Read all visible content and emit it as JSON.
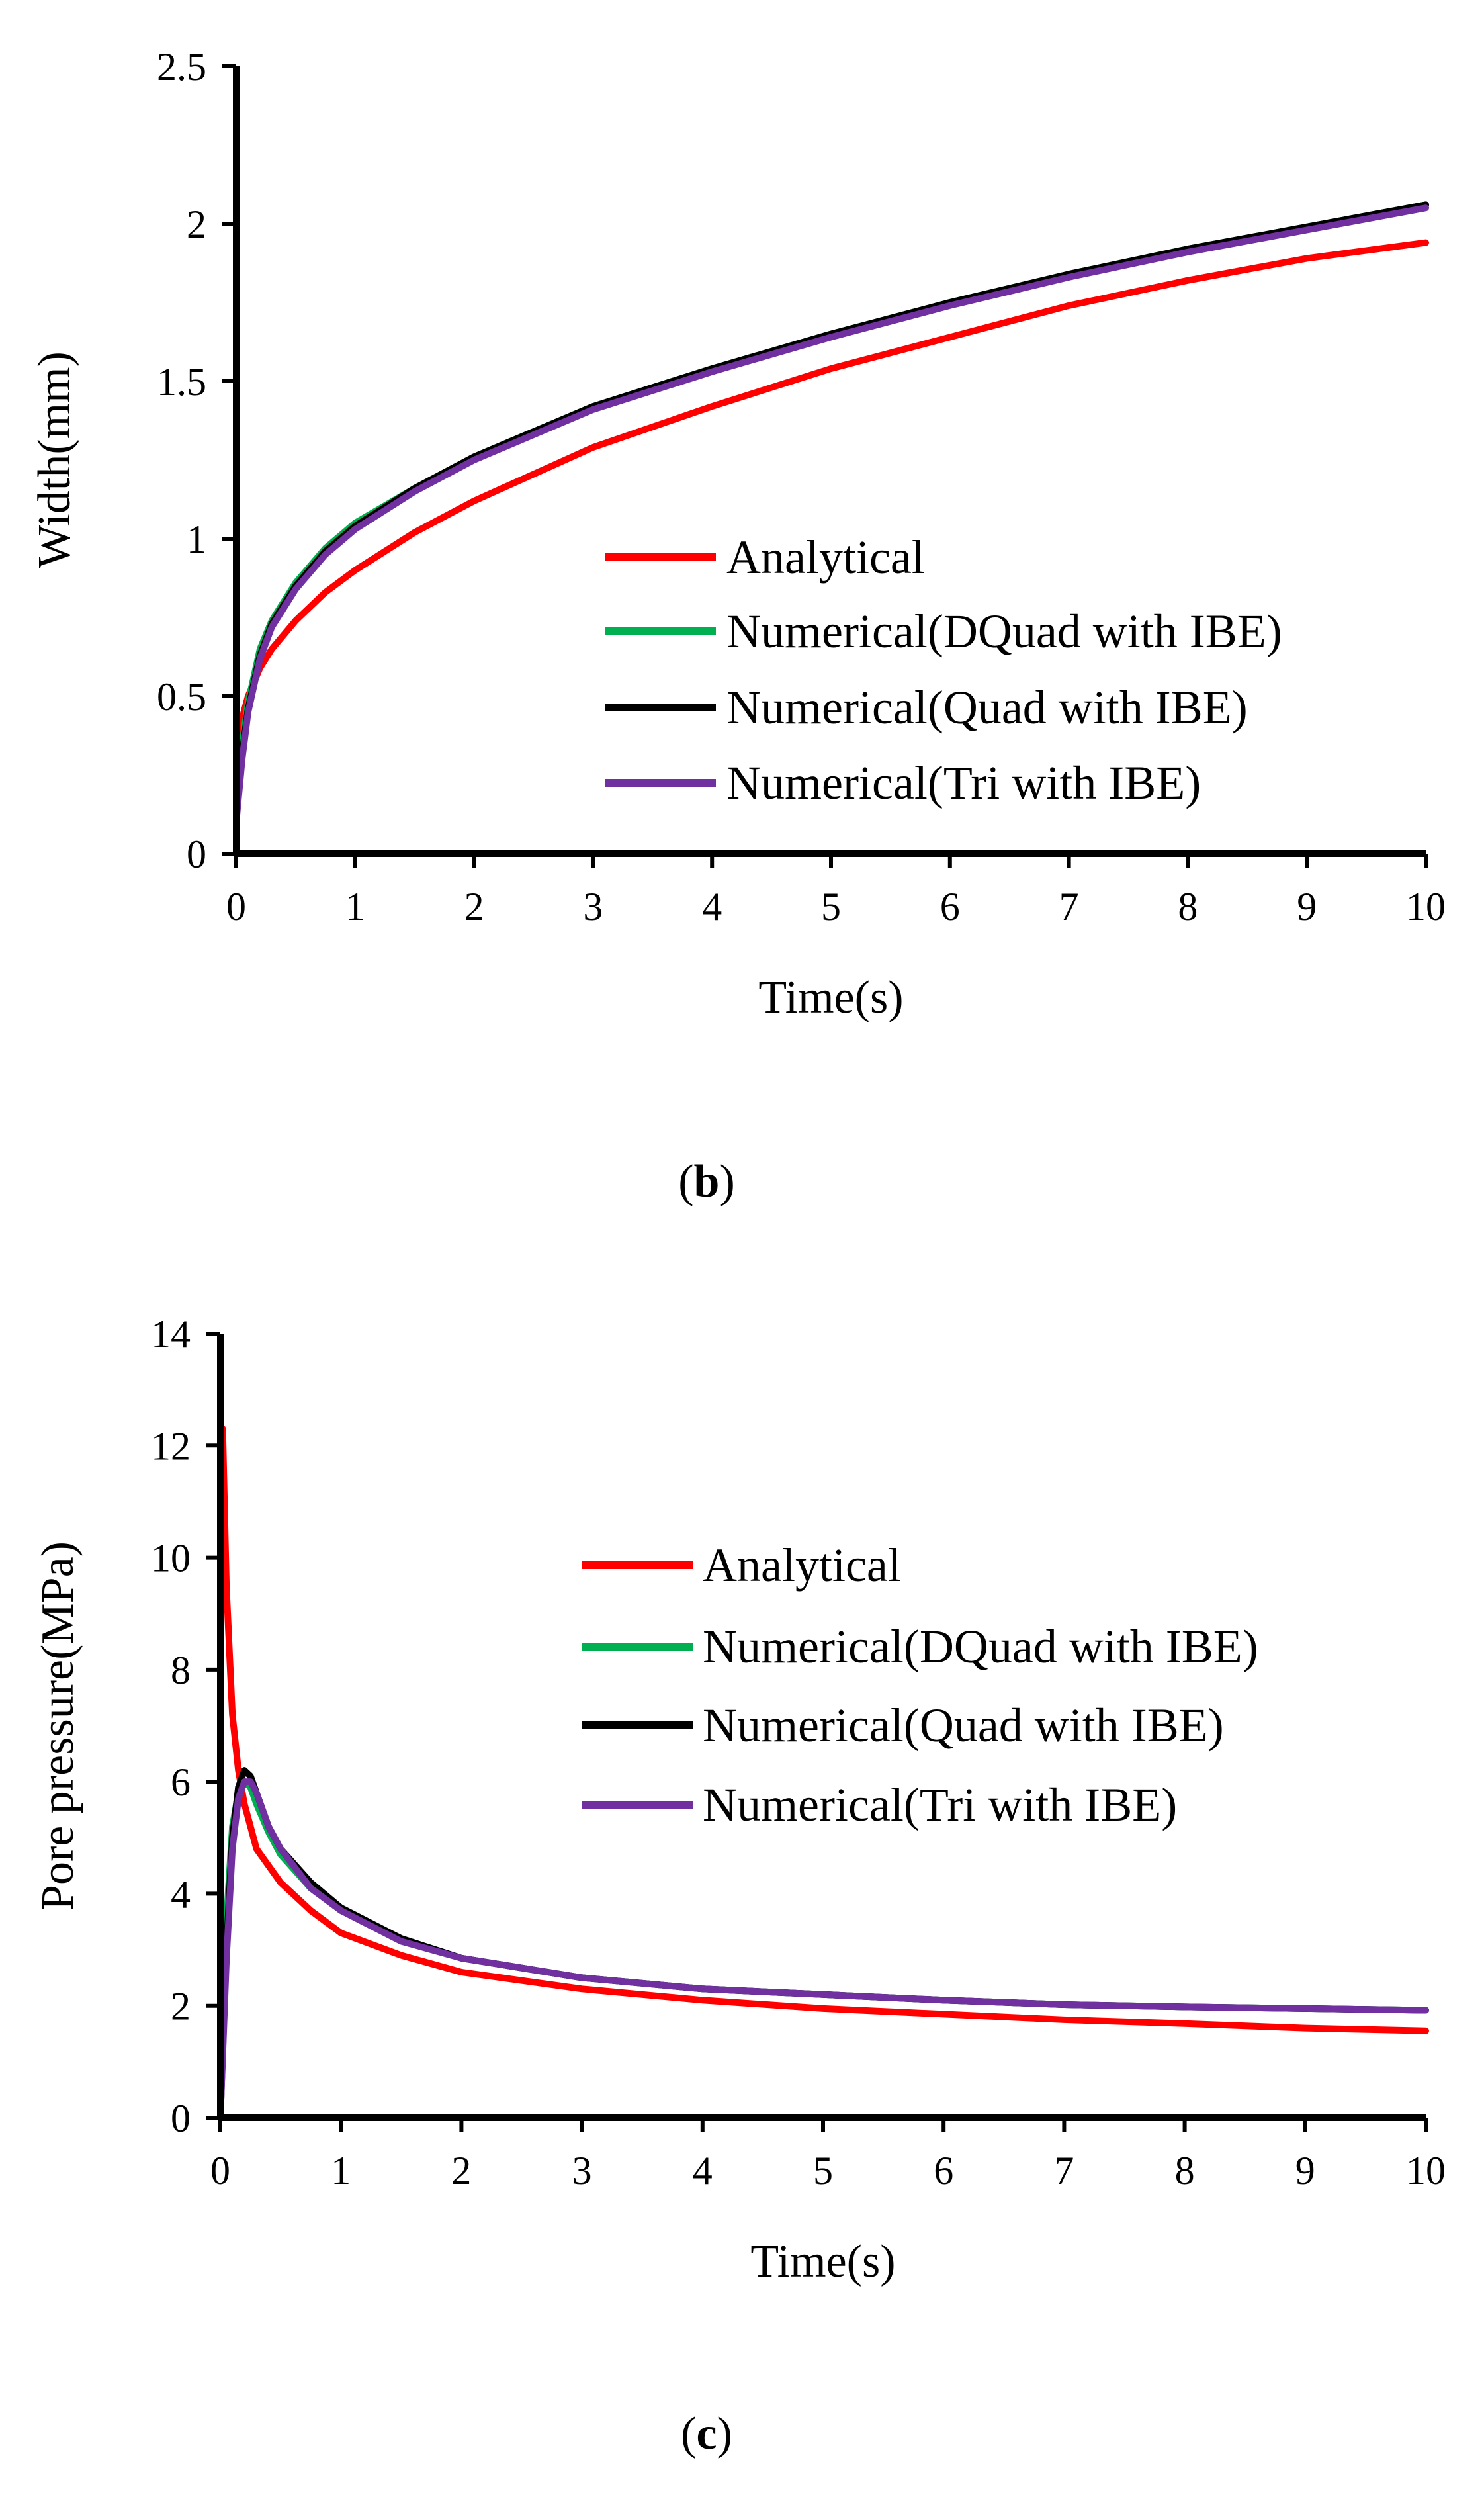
{
  "chart_data": [
    {
      "type": "line",
      "panel_label": "b",
      "xlabel": "Time(s)",
      "ylabel": "Width(mm)",
      "xlim": [
        0,
        10
      ],
      "ylim": [
        0,
        2.5
      ],
      "x_ticks": [
        0,
        1,
        2,
        3,
        4,
        5,
        6,
        7,
        8,
        9,
        10
      ],
      "y_ticks": [
        0,
        0.5,
        1,
        1.5,
        2,
        2.5
      ],
      "y_tick_labels": [
        "0",
        "0.5",
        "1",
        "1.5",
        "2",
        "2.5"
      ],
      "legend_position": "center-right",
      "series": [
        {
          "name": "Analytical",
          "color": "#ff0000",
          "x": [
            0,
            0.05,
            0.1,
            0.2,
            0.3,
            0.5,
            0.75,
            1,
            1.5,
            2,
            3,
            4,
            5,
            6,
            7,
            8,
            9,
            10
          ],
          "y": [
            0.25,
            0.43,
            0.5,
            0.59,
            0.65,
            0.74,
            0.83,
            0.9,
            1.02,
            1.12,
            1.29,
            1.42,
            1.54,
            1.64,
            1.74,
            1.82,
            1.89,
            1.94
          ]
        },
        {
          "name": "Numerical(DQuad with IBE)",
          "color": "#00b050",
          "x": [
            0,
            0.05,
            0.1,
            0.2,
            0.3,
            0.5,
            0.75,
            1,
            1.5,
            2,
            3,
            4,
            5,
            6,
            7,
            8,
            9,
            10
          ],
          "y": [
            0.12,
            0.35,
            0.48,
            0.65,
            0.74,
            0.86,
            0.97,
            1.05,
            1.16,
            1.26,
            1.42,
            1.54,
            1.65,
            1.75,
            1.84,
            1.92,
            1.99,
            2.06
          ]
        },
        {
          "name": "Numerical(Quad with IBE)",
          "color": "#000000",
          "x": [
            0,
            0.05,
            0.1,
            0.2,
            0.3,
            0.5,
            0.75,
            1,
            1.5,
            2,
            3,
            4,
            5,
            6,
            7,
            8,
            9,
            10
          ],
          "y": [
            0.11,
            0.32,
            0.46,
            0.63,
            0.73,
            0.85,
            0.96,
            1.04,
            1.16,
            1.26,
            1.42,
            1.54,
            1.65,
            1.75,
            1.84,
            1.92,
            1.99,
            2.06
          ]
        },
        {
          "name": "Numerical(Tri with IBE)",
          "color": "#7030a0",
          "x": [
            0,
            0.05,
            0.1,
            0.2,
            0.3,
            0.5,
            0.75,
            1,
            1.5,
            2,
            3,
            4,
            5,
            6,
            7,
            8,
            9,
            10
          ],
          "y": [
            0.1,
            0.3,
            0.45,
            0.62,
            0.72,
            0.84,
            0.95,
            1.03,
            1.15,
            1.25,
            1.41,
            1.53,
            1.64,
            1.74,
            1.83,
            1.91,
            1.98,
            2.05
          ]
        }
      ]
    },
    {
      "type": "line",
      "panel_label": "c",
      "xlabel": "Time(s)",
      "ylabel": "Pore pressure(MPa)",
      "xlim": [
        0,
        10
      ],
      "ylim": [
        0,
        14
      ],
      "x_ticks": [
        0,
        1,
        2,
        3,
        4,
        5,
        6,
        7,
        8,
        9,
        10
      ],
      "y_ticks": [
        0,
        2,
        4,
        6,
        8,
        10,
        12,
        14
      ],
      "y_tick_labels": [
        "0",
        "2",
        "4",
        "6",
        "8",
        "10",
        "12",
        "14"
      ],
      "legend_position": "center-right",
      "series": [
        {
          "name": "Analytical",
          "color": "#ff0000",
          "x": [
            0.02,
            0.05,
            0.1,
            0.15,
            0.2,
            0.3,
            0.5,
            0.75,
            1,
            1.5,
            2,
            3,
            4,
            5,
            6,
            7,
            8,
            9,
            10
          ],
          "y": [
            12.3,
            9.5,
            7.2,
            6.2,
            5.6,
            4.8,
            4.2,
            3.7,
            3.3,
            2.9,
            2.6,
            2.3,
            2.1,
            1.95,
            1.85,
            1.75,
            1.68,
            1.6,
            1.55
          ]
        },
        {
          "name": "Numerical(DQuad with IBE)",
          "color": "#00b050",
          "x": [
            0,
            0.05,
            0.1,
            0.15,
            0.2,
            0.25,
            0.3,
            0.4,
            0.5,
            0.75,
            1,
            1.5,
            2,
            3,
            4,
            5,
            6,
            7,
            8,
            9,
            10
          ],
          "y": [
            0,
            3.5,
            5.2,
            5.8,
            6.0,
            5.9,
            5.6,
            5.1,
            4.7,
            4.1,
            3.7,
            3.2,
            2.85,
            2.5,
            2.3,
            2.2,
            2.1,
            2.02,
            1.98,
            1.95,
            1.92
          ]
        },
        {
          "name": "Numerical(Quad with IBE)",
          "color": "#000000",
          "x": [
            0,
            0.05,
            0.1,
            0.15,
            0.2,
            0.25,
            0.3,
            0.4,
            0.5,
            0.75,
            1,
            1.5,
            2,
            3,
            4,
            5,
            6,
            7,
            8,
            9,
            10
          ],
          "y": [
            0,
            3.0,
            5.0,
            5.9,
            6.2,
            6.1,
            5.8,
            5.2,
            4.8,
            4.2,
            3.75,
            3.2,
            2.85,
            2.5,
            2.3,
            2.2,
            2.1,
            2.02,
            1.98,
            1.95,
            1.92
          ]
        },
        {
          "name": "Numerical(Tri with IBE)",
          "color": "#7030a0",
          "x": [
            0,
            0.05,
            0.1,
            0.15,
            0.2,
            0.25,
            0.3,
            0.4,
            0.5,
            0.75,
            1,
            1.5,
            2,
            3,
            4,
            5,
            6,
            7,
            8,
            9,
            10
          ],
          "y": [
            0,
            2.8,
            4.8,
            5.7,
            6.0,
            6.0,
            5.8,
            5.2,
            4.8,
            4.1,
            3.7,
            3.15,
            2.85,
            2.5,
            2.3,
            2.2,
            2.1,
            2.02,
            1.98,
            1.95,
            1.92
          ]
        }
      ]
    }
  ]
}
